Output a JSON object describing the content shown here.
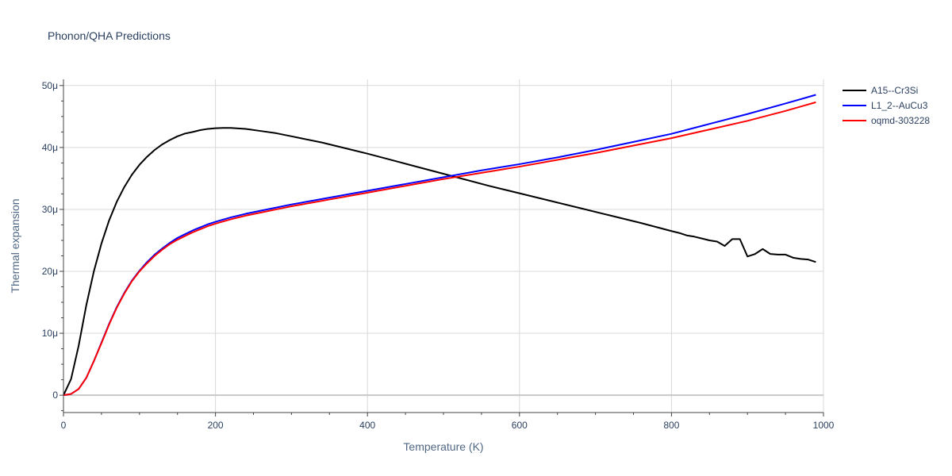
{
  "chart_data": {
    "type": "line",
    "title": "Phonon/QHA Predictions",
    "xlabel": "Temperature (K)",
    "ylabel": "Thermal expansion",
    "xlim": [
      0,
      1000
    ],
    "ylim": [
      -2.8e-06,
      5.1e-05
    ],
    "x_ticks": [
      0,
      200,
      400,
      600,
      800,
      1000
    ],
    "x_tick_labels": [
      "0",
      "200",
      "400",
      "600",
      "800",
      "1000"
    ],
    "y_ticks": [
      0,
      1e-05,
      2e-05,
      3e-05,
      4e-05,
      5e-05
    ],
    "y_tick_labels": [
      "0",
      "10μ",
      "20μ",
      "30μ",
      "40μ",
      "50μ"
    ],
    "grid": true,
    "legend_position": "top-right",
    "series": [
      {
        "name": "A15--Cr3Si",
        "color": "#000000",
        "x": [
          0,
          10,
          20,
          30,
          40,
          50,
          60,
          70,
          80,
          90,
          100,
          110,
          120,
          130,
          140,
          150,
          160,
          170,
          180,
          190,
          200,
          210,
          220,
          240,
          260,
          280,
          300,
          340,
          380,
          400,
          440,
          480,
          520,
          560,
          600,
          640,
          680,
          720,
          760,
          800,
          810,
          820,
          830,
          840,
          850,
          860,
          870,
          880,
          890,
          900,
          910,
          920,
          930,
          940,
          950,
          960,
          970,
          980,
          990
        ],
        "y": [
          0,
          2.6e-06,
          8e-06,
          1.45e-05,
          2e-05,
          2.45e-05,
          2.82e-05,
          3.12e-05,
          3.36e-05,
          3.56e-05,
          3.72e-05,
          3.85e-05,
          3.96e-05,
          4.05e-05,
          4.12e-05,
          4.18e-05,
          4.225e-05,
          4.25e-05,
          4.28e-05,
          4.3e-05,
          4.31e-05,
          4.315e-05,
          4.315e-05,
          4.3e-05,
          4.265e-05,
          4.23e-05,
          4.18e-05,
          4.08e-05,
          3.96e-05,
          3.9e-05,
          3.77e-05,
          3.64e-05,
          3.51e-05,
          3.38e-05,
          3.26e-05,
          3.14e-05,
          3.02e-05,
          2.9e-05,
          2.78e-05,
          2.65e-05,
          2.62e-05,
          2.58e-05,
          2.56e-05,
          2.53e-05,
          2.5e-05,
          2.48e-05,
          2.41e-05,
          2.52e-05,
          2.52e-05,
          2.24e-05,
          2.28e-05,
          2.36e-05,
          2.28e-05,
          2.27e-05,
          2.27e-05,
          2.22e-05,
          2.2e-05,
          2.19e-05,
          2.15e-05
        ]
      },
      {
        "name": "L1_2--AuCu3",
        "color": "#0000ff",
        "x": [
          0,
          10,
          20,
          30,
          40,
          50,
          60,
          70,
          80,
          90,
          100,
          110,
          120,
          130,
          140,
          150,
          160,
          170,
          180,
          190,
          200,
          220,
          240,
          260,
          280,
          300,
          350,
          400,
          450,
          500,
          550,
          600,
          650,
          700,
          750,
          800,
          850,
          900,
          950,
          990
        ],
        "y": [
          0,
          2e-07,
          1e-06,
          2.8e-06,
          5.5e-06,
          8.5e-06,
          1.15e-05,
          1.42e-05,
          1.65e-05,
          1.85e-05,
          2.01e-05,
          2.15e-05,
          2.27e-05,
          2.37e-05,
          2.46e-05,
          2.54e-05,
          2.6e-05,
          2.66e-05,
          2.71e-05,
          2.76e-05,
          2.8e-05,
          2.87e-05,
          2.93e-05,
          2.98e-05,
          3.03e-05,
          3.08e-05,
          3.19e-05,
          3.3e-05,
          3.41e-05,
          3.52e-05,
          3.63e-05,
          3.73e-05,
          3.84e-05,
          3.96e-05,
          4.09e-05,
          4.22e-05,
          4.38e-05,
          4.54e-05,
          4.71e-05,
          4.85e-05
        ]
      },
      {
        "name": "oqmd-303228",
        "color": "#ff0000",
        "x": [
          0,
          10,
          20,
          30,
          40,
          50,
          60,
          70,
          80,
          90,
          100,
          110,
          120,
          130,
          140,
          150,
          160,
          170,
          180,
          190,
          200,
          220,
          240,
          260,
          280,
          300,
          350,
          400,
          450,
          500,
          550,
          600,
          650,
          700,
          750,
          800,
          850,
          900,
          950,
          990
        ],
        "y": [
          0,
          2e-07,
          1e-06,
          2.8e-06,
          5.5e-06,
          8.4e-06,
          1.14e-05,
          1.41e-05,
          1.64e-05,
          1.84e-05,
          2e-05,
          2.13e-05,
          2.25e-05,
          2.35e-05,
          2.44e-05,
          2.51e-05,
          2.57e-05,
          2.63e-05,
          2.68e-05,
          2.73e-05,
          2.77e-05,
          2.84e-05,
          2.9e-05,
          2.95e-05,
          3e-05,
          3.05e-05,
          3.16e-05,
          3.27e-05,
          3.38e-05,
          3.49e-05,
          3.59e-05,
          3.69e-05,
          3.8e-05,
          3.91e-05,
          4.03e-05,
          4.15e-05,
          4.29e-05,
          4.43e-05,
          4.59e-05,
          4.73e-05
        ]
      }
    ]
  }
}
